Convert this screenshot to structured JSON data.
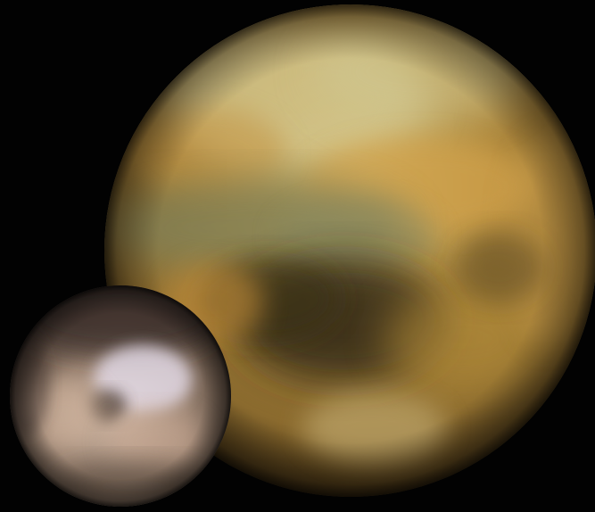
{
  "image": {
    "subjects": [
      {
        "name": "large-body",
        "colors": {
          "base": "#b08a3e",
          "light": "#d8c889",
          "dark": "#3a2a12",
          "shadow": "#1a1208"
        }
      },
      {
        "name": "small-body",
        "colors": {
          "base": "#8c7766",
          "light": "#e2cdbd",
          "dark": "#3c3029",
          "highlight": "#dcd6e6"
        }
      }
    ],
    "background_color": "#020202"
  }
}
